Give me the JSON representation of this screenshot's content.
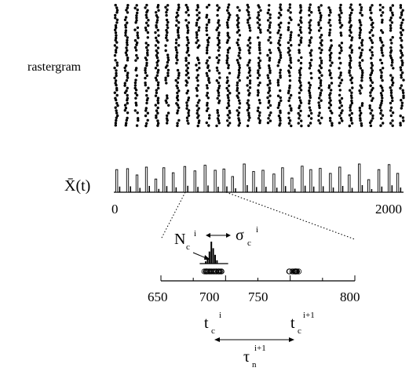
{
  "chart_data": [
    {
      "type": "scatter",
      "label": "rastergram",
      "description_columns": 28,
      "x": [
        148,
        161,
        174,
        187,
        200,
        213,
        226,
        239,
        252,
        265,
        278,
        291,
        304,
        317,
        330,
        343,
        356,
        369,
        382,
        395,
        408,
        421,
        434,
        447,
        460,
        473,
        486,
        499,
        512
      ]
    },
    {
      "type": "bar",
      "ylabel": "X̄(t)",
      "xlim": [
        0,
        2000
      ],
      "xticklabels": [
        "0",
        "2000"
      ],
      "peaks_x": [
        20,
        95,
        160,
        225,
        290,
        345,
        410,
        490,
        560,
        630,
        700,
        760,
        820,
        900,
        965,
        1030,
        1105,
        1165,
        1230,
        1300,
        1360,
        1425,
        1495,
        1560,
        1625,
        1695,
        1760,
        1830,
        1900,
        1960
      ],
      "peaks_h": [
        0.72,
        0.75,
        0.55,
        0.8,
        0.42,
        0.78,
        0.62,
        0.82,
        0.68,
        0.86,
        0.7,
        0.74,
        0.5,
        0.9,
        0.66,
        0.7,
        0.58,
        0.78,
        0.45,
        0.83,
        0.72,
        0.76,
        0.6,
        0.8,
        0.55,
        0.9,
        0.4,
        0.72,
        0.88,
        0.6
      ]
    },
    {
      "type": "scatter",
      "xlim": [
        650,
        800
      ],
      "xticklabels": [
        "650",
        "700",
        "750",
        "800"
      ],
      "clusters": [
        {
          "center": 690,
          "spread": 7
        },
        {
          "center": 753,
          "spread": 4
        }
      ],
      "histogram": [
        0.1,
        0.25,
        0.55,
        1.0,
        0.7,
        0.4,
        0.15
      ]
    }
  ],
  "labels": {
    "raster": "rastergram",
    "xbar": "X̄(t)",
    "tick0": "0",
    "tick2000": "2000",
    "Nc": "N",
    "Nc_sub": "c",
    "Nc_sup": "i",
    "sigma": "σ",
    "sigma_sub": "c",
    "sigma_sup": "i",
    "tc": "t",
    "tc_sub": "c",
    "tc_sup": "i",
    "tc1": "t",
    "tc1_sub": "c",
    "tc1_sup": "i+1",
    "tau": "τ",
    "tau_sub": "n",
    "tau_sup": "i+1"
  }
}
